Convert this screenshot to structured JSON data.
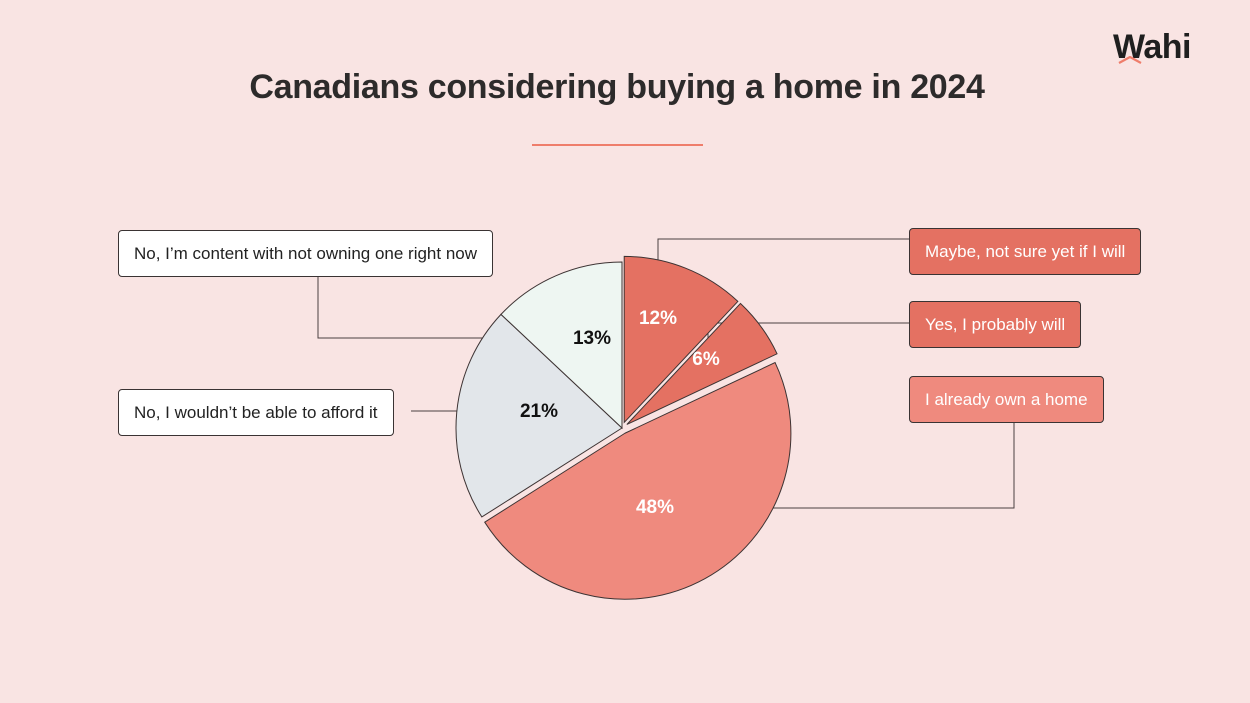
{
  "header": {
    "title": "Canadians considering buying a home in 2024",
    "logo_text": "Wahi"
  },
  "colors": {
    "background": "#f9e4e3",
    "accent": "#ef7d6b"
  },
  "chart_data": {
    "type": "pie",
    "title": "Canadians considering buying a home in 2024",
    "slices": [
      {
        "label": "Maybe, not sure yet if I will",
        "value": 12,
        "value_label": "12%",
        "color": "#e47162",
        "exploded": true
      },
      {
        "label": "Yes, I probably will",
        "value": 6,
        "value_label": "6%",
        "color": "#e47162",
        "exploded": true
      },
      {
        "label": "I already own a home",
        "value": 48,
        "value_label": "48%",
        "color": "#ef8a7e",
        "exploded": true
      },
      {
        "label": "No, I wouldn’t be able to afford it",
        "value": 21,
        "value_label": "21%",
        "color": "#e2e6ea",
        "exploded": false
      },
      {
        "label": "No, I’m content with not owning one right now",
        "value": 13,
        "value_label": "13%",
        "color": "#eef6f2",
        "exploded": false
      }
    ],
    "legend": "callout-labels"
  }
}
